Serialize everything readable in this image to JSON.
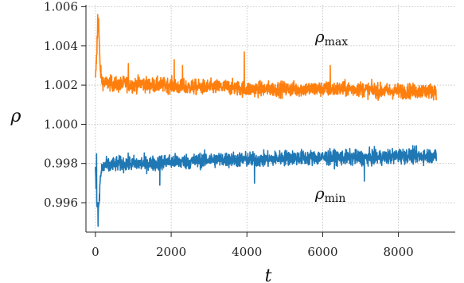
{
  "chart_data": {
    "type": "line",
    "xlabel": "t",
    "ylabel": "ρ",
    "xlim": [
      -250,
      9500
    ],
    "ylim": [
      0.9945,
      1.0061
    ],
    "xticks": [
      0,
      2000,
      4000,
      6000,
      8000
    ],
    "yticks": [
      0.996,
      0.998,
      1.0,
      1.002,
      1.004,
      1.006
    ],
    "xtick_labels": [
      "0",
      "2000",
      "4000",
      "6000",
      "8000"
    ],
    "ytick_labels": [
      "0.996",
      "0.998",
      "1.000",
      "1.002",
      "1.004",
      "1.006"
    ],
    "grid": true,
    "annotations": [
      {
        "base": "ρ",
        "sub": "max",
        "x": 5000,
        "y": 1.0042
      },
      {
        "base": "ρ",
        "sub": "min",
        "x": 5000,
        "y": 0.9962
      }
    ],
    "series": [
      {
        "color": "#ff7f0e",
        "x": [
          0,
          40,
          80,
          120,
          160,
          250,
          400,
          600,
          800,
          1000,
          1200,
          1400,
          1600,
          1800,
          2000,
          2200,
          2500,
          3000,
          3500,
          4000,
          4500,
          5000,
          5500,
          6000,
          6500,
          7000,
          7500,
          8000,
          8500,
          9000
        ],
        "y": [
          1.0022,
          1.0038,
          1.0055,
          1.003,
          1.0023,
          1.0021,
          1.0021,
          1.002,
          1.0021,
          1.002,
          1.0021,
          1.002,
          1.002,
          1.002,
          1.002,
          1.0019,
          1.0019,
          1.0019,
          1.0019,
          1.0018,
          1.0018,
          1.0018,
          1.0018,
          1.0018,
          1.0018,
          1.0018,
          1.0017,
          1.0017,
          1.0017,
          1.0017
        ],
        "noise": 0.00045,
        "spikes": [
          [
            60,
            1.0056
          ],
          [
            45,
            1.0045
          ],
          [
            2080,
            1.0033
          ],
          [
            3930,
            1.0037
          ],
          [
            2300,
            1.003
          ],
          [
            6200,
            1.003
          ],
          [
            870,
            1.0031
          ]
        ]
      },
      {
        "color": "#1f77b4",
        "x": [
          0,
          40,
          80,
          120,
          160,
          250,
          400,
          600,
          800,
          1000,
          1200,
          1400,
          1600,
          1800,
          2000,
          2200,
          2500,
          3000,
          3500,
          4000,
          4500,
          5000,
          5500,
          6000,
          6500,
          7000,
          7500,
          8000,
          8500,
          9000
        ],
        "y": [
          0.9975,
          0.996,
          0.9955,
          0.997,
          0.9977,
          0.9979,
          0.9979,
          0.998,
          0.998,
          0.998,
          0.998,
          0.998,
          0.998,
          0.9981,
          0.9981,
          0.9981,
          0.9981,
          0.9982,
          0.9982,
          0.9982,
          0.9982,
          0.9983,
          0.9983,
          0.9983,
          0.9983,
          0.9983,
          0.9983,
          0.9984,
          0.9984,
          0.9984
        ],
        "noise": 0.00045,
        "spikes": [
          [
            70,
            0.9948
          ],
          [
            30,
            0.9985
          ],
          [
            110,
            0.9961
          ],
          [
            1700,
            0.9969
          ],
          [
            4200,
            0.997
          ],
          [
            7100,
            0.9971
          ]
        ]
      }
    ]
  }
}
